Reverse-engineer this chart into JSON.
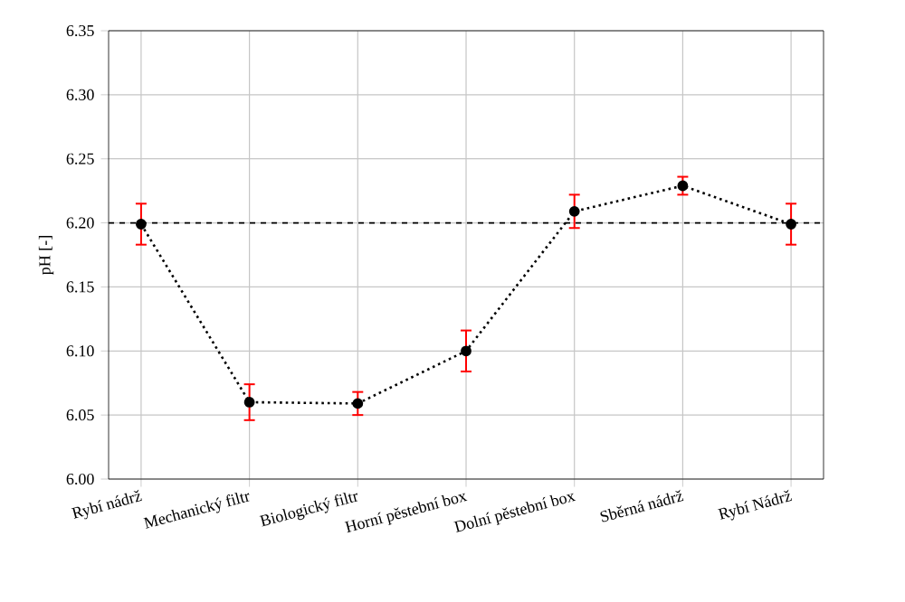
{
  "chart_data": {
    "type": "line",
    "ylabel": "pH [-]",
    "categories": [
      "Rybí nádrž",
      "Mechanický filtr",
      "Biologický filtr",
      "Horní pěstební box",
      "Dolní pěstební box",
      "Sběrná nádrž",
      "Rybí Nádrž"
    ],
    "series": [
      {
        "color": "#000000",
        "values": [
          6.199,
          6.06,
          6.059,
          6.1,
          6.209,
          6.229,
          6.199
        ],
        "errors": [
          0.016,
          0.014,
          0.009,
          0.016,
          0.013,
          0.007,
          0.016
        ]
      }
    ],
    "ylim": [
      6.0,
      6.35
    ],
    "yticks": [
      {
        "value": 6.0,
        "label": "6.00"
      },
      {
        "value": 6.05,
        "label": "6.05"
      },
      {
        "value": 6.1,
        "label": "6.10"
      },
      {
        "value": 6.15,
        "label": "6.15"
      },
      {
        "value": 6.2,
        "label": "6.20"
      },
      {
        "value": 6.25,
        "label": "6.25"
      },
      {
        "value": 6.3,
        "label": "6.30"
      },
      {
        "value": 6.35,
        "label": "6.35"
      }
    ],
    "ref_lines": [
      {
        "axis": "y",
        "value": 6.2,
        "color": "#000000",
        "line_style": "dashed"
      }
    ],
    "grid": true,
    "marker": "circle",
    "line_style": "dotted"
  }
}
